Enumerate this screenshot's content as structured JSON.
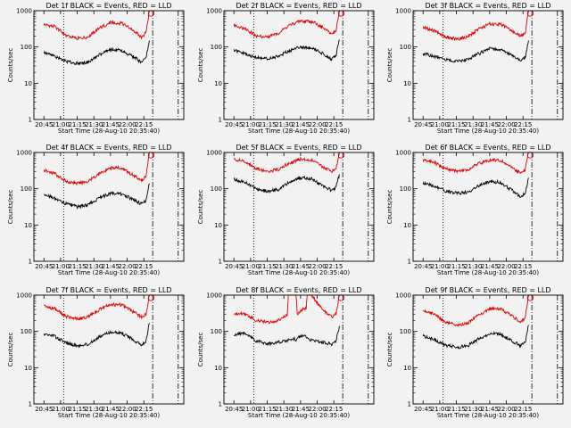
{
  "chart_data": [
    {
      "type": "line",
      "title": "Det 1f BLACK = Events, RED = LLD",
      "xlabel": "Start Time (28-Aug-10 20:35:40)",
      "ylabel": "Counts/sec",
      "yscale": "log",
      "ylim": [
        1,
        1000
      ],
      "y_ticks": [
        "1",
        "10",
        "100",
        "1000"
      ],
      "x_ticks": [
        "20:45",
        "21:00",
        "21:15",
        "21:30",
        "21:45",
        "22:00",
        "22:15"
      ],
      "x_minutes": [
        0,
        10,
        20,
        30,
        40,
        50,
        60,
        70,
        80,
        88,
        92,
        95
      ],
      "series": [
        {
          "color": "#dd0000",
          "values": [
            420,
            360,
            210,
            170,
            190,
            330,
            470,
            450,
            300,
            180,
            250,
            1000
          ]
        },
        {
          "color": "#000000",
          "values": [
            70,
            55,
            40,
            35,
            38,
            60,
            85,
            80,
            55,
            38,
            50,
            150
          ]
        }
      ],
      "vlines": [
        {
          "x_minutes": 18,
          "style": "dotted"
        },
        {
          "x_minutes": 98,
          "style": "dashdot"
        },
        {
          "x_minutes": 121,
          "style": "dashdot"
        }
      ]
    },
    {
      "type": "line",
      "title": "Det 2f BLACK = Events, RED = LLD",
      "xlabel": "Start Time (28-Aug-10 20:35:40)",
      "ylabel": "Counts/sec",
      "yscale": "log",
      "ylim": [
        1,
        1000
      ],
      "y_ticks": [
        "1",
        "10",
        "100",
        "1000"
      ],
      "x_ticks": [
        "20:45",
        "21:00",
        "21:15",
        "21:30",
        "21:45",
        "22:00",
        "22:15"
      ],
      "x_minutes": [
        0,
        10,
        20,
        30,
        40,
        50,
        60,
        70,
        80,
        88,
        92,
        95
      ],
      "series": [
        {
          "color": "#dd0000",
          "values": [
            400,
            320,
            200,
            190,
            240,
            400,
            520,
            500,
            350,
            220,
            280,
            1000
          ]
        },
        {
          "color": "#000000",
          "values": [
            80,
            65,
            50,
            48,
            55,
            80,
            100,
            95,
            65,
            45,
            60,
            160
          ]
        }
      ],
      "vlines": [
        {
          "x_minutes": 18,
          "style": "dotted"
        },
        {
          "x_minutes": 98,
          "style": "dashdot"
        },
        {
          "x_minutes": 121,
          "style": "dashdot"
        }
      ]
    },
    {
      "type": "line",
      "title": "Det 3f BLACK = Events, RED = LLD",
      "xlabel": "Start Time (28-Aug-10 20:35:40)",
      "ylabel": "Counts/sec",
      "yscale": "log",
      "ylim": [
        1,
        1000
      ],
      "y_ticks": [
        "1",
        "10",
        "100",
        "1000"
      ],
      "x_ticks": [
        "20:45",
        "21:00",
        "21:15",
        "21:30",
        "21:45",
        "22:00",
        "22:15"
      ],
      "x_minutes": [
        0,
        10,
        20,
        30,
        40,
        50,
        60,
        70,
        80,
        88,
        92,
        95
      ],
      "series": [
        {
          "color": "#dd0000",
          "values": [
            350,
            280,
            190,
            165,
            190,
            310,
            430,
            420,
            280,
            200,
            240,
            1000
          ]
        },
        {
          "color": "#000000",
          "values": [
            65,
            55,
            45,
            40,
            45,
            65,
            90,
            85,
            58,
            42,
            52,
            150
          ]
        }
      ],
      "vlines": [
        {
          "x_minutes": 18,
          "style": "dotted"
        },
        {
          "x_minutes": 98,
          "style": "dashdot"
        },
        {
          "x_minutes": 121,
          "style": "dashdot"
        }
      ]
    },
    {
      "type": "line",
      "title": "Det 4f BLACK = Events, RED = LLD",
      "xlabel": "Start Time (28-Aug-10 20:35:40)",
      "ylabel": "Counts/sec",
      "yscale": "log",
      "ylim": [
        1,
        1000
      ],
      "y_ticks": [
        "1",
        "10",
        "100",
        "1000"
      ],
      "x_ticks": [
        "20:45",
        "21:00",
        "21:15",
        "21:30",
        "21:45",
        "22:00",
        "22:15"
      ],
      "x_minutes": [
        0,
        10,
        20,
        30,
        40,
        50,
        60,
        70,
        80,
        88,
        92,
        95
      ],
      "series": [
        {
          "color": "#dd0000",
          "values": [
            320,
            260,
            160,
            140,
            160,
            260,
            380,
            370,
            240,
            170,
            210,
            1000
          ]
        },
        {
          "color": "#000000",
          "values": [
            70,
            55,
            38,
            32,
            36,
            55,
            75,
            72,
            50,
            38,
            48,
            140
          ]
        }
      ],
      "vlines": [
        {
          "x_minutes": 18,
          "style": "dotted"
        },
        {
          "x_minutes": 98,
          "style": "dashdot"
        },
        {
          "x_minutes": 121,
          "style": "dashdot"
        }
      ]
    },
    {
      "type": "line",
      "title": "Det 5f BLACK = Events, RED = LLD",
      "xlabel": "Start Time (28-Aug-10 20:35:40)",
      "ylabel": "Counts/sec",
      "yscale": "log",
      "ylim": [
        1,
        1000
      ],
      "y_ticks": [
        "1",
        "10",
        "100",
        "1000"
      ],
      "x_ticks": [
        "20:45",
        "21:00",
        "21:15",
        "21:30",
        "21:45",
        "22:00",
        "22:15"
      ],
      "x_minutes": [
        0,
        10,
        20,
        30,
        40,
        50,
        60,
        70,
        80,
        88,
        92,
        95
      ],
      "series": [
        {
          "color": "#dd0000",
          "values": [
            650,
            560,
            360,
            300,
            340,
            520,
            650,
            620,
            400,
            300,
            360,
            1000
          ]
        },
        {
          "color": "#000000",
          "values": [
            180,
            150,
            100,
            85,
            95,
            150,
            200,
            190,
            120,
            90,
            110,
            250
          ]
        }
      ],
      "vlines": [
        {
          "x_minutes": 18,
          "style": "dotted"
        },
        {
          "x_minutes": 98,
          "style": "dashdot"
        },
        {
          "x_minutes": 121,
          "style": "dashdot"
        }
      ]
    },
    {
      "type": "line",
      "title": "Det 6f BLACK = Events, RED = LLD",
      "xlabel": "Start Time (28-Aug-10 20:35:40)",
      "ylabel": "Counts/sec",
      "yscale": "log",
      "ylim": [
        1,
        1000
      ],
      "y_ticks": [
        "1",
        "10",
        "100",
        "1000"
      ],
      "x_ticks": [
        "20:45",
        "21:00",
        "21:15",
        "21:30",
        "21:45",
        "22:00",
        "22:15"
      ],
      "x_minutes": [
        0,
        10,
        20,
        30,
        40,
        50,
        60,
        70,
        80,
        88,
        92,
        95
      ],
      "series": [
        {
          "color": "#dd0000",
          "values": [
            620,
            540,
            360,
            300,
            330,
            500,
            620,
            600,
            380,
            270,
            330,
            1000
          ]
        },
        {
          "color": "#000000",
          "values": [
            140,
            120,
            85,
            75,
            80,
            120,
            160,
            150,
            90,
            60,
            75,
            200
          ]
        }
      ],
      "vlines": [
        {
          "x_minutes": 18,
          "style": "dotted"
        },
        {
          "x_minutes": 98,
          "style": "dashdot"
        },
        {
          "x_minutes": 121,
          "style": "dashdot"
        }
      ]
    },
    {
      "type": "line",
      "title": "Det 7f BLACK = Events, RED = LLD",
      "xlabel": "Start Time (28-Aug-10 20:35:40)",
      "ylabel": "Counts/sec",
      "yscale": "log",
      "ylim": [
        1,
        1000
      ],
      "y_ticks": [
        "1",
        "10",
        "100",
        "1000"
      ],
      "x_ticks": [
        "20:45",
        "21:00",
        "21:15",
        "21:30",
        "21:45",
        "22:00",
        "22:15"
      ],
      "x_minutes": [
        0,
        10,
        20,
        30,
        40,
        50,
        60,
        70,
        80,
        88,
        92,
        95
      ],
      "series": [
        {
          "color": "#dd0000",
          "values": [
            500,
            420,
            260,
            220,
            250,
            400,
            560,
            540,
            360,
            250,
            300,
            1000
          ]
        },
        {
          "color": "#000000",
          "values": [
            85,
            72,
            48,
            40,
            45,
            70,
            95,
            90,
            60,
            42,
            55,
            170
          ]
        }
      ],
      "vlines": [
        {
          "x_minutes": 18,
          "style": "dotted"
        },
        {
          "x_minutes": 98,
          "style": "dashdot"
        },
        {
          "x_minutes": 121,
          "style": "dashdot"
        }
      ]
    },
    {
      "type": "line",
      "title": "Det 8f BLACK = Events, RED = LLD",
      "xlabel": "Start Time (28-Aug-10 20:35:40)",
      "ylabel": "Counts/sec",
      "yscale": "log",
      "ylim": [
        1,
        1000
      ],
      "y_ticks": [
        "1",
        "10",
        "100",
        "1000"
      ],
      "x_ticks": [
        "20:45",
        "21:00",
        "21:15",
        "21:30",
        "21:45",
        "22:00",
        "22:15"
      ],
      "x_minutes": [
        0,
        5,
        10,
        20,
        30,
        40,
        48,
        49,
        50,
        54,
        56,
        57,
        62,
        65,
        66,
        70,
        80,
        88,
        92,
        95
      ],
      "series": [
        {
          "color": "#dd0000",
          "values": [
            300,
            320,
            300,
            200,
            180,
            200,
            280,
            1000,
            1000,
            1000,
            1000,
            300,
            400,
            420,
            1000,
            1000,
            380,
            250,
            300,
            1000
          ]
        },
        {
          "color": "#000000",
          "values": [
            80,
            90,
            85,
            55,
            45,
            50,
            55,
            55,
            60,
            62,
            58,
            65,
            75,
            70,
            72,
            55,
            50,
            45,
            55,
            140
          ]
        }
      ],
      "vlines": [
        {
          "x_minutes": 18,
          "style": "dotted"
        },
        {
          "x_minutes": 98,
          "style": "dashdot"
        },
        {
          "x_minutes": 121,
          "style": "dashdot"
        }
      ]
    },
    {
      "type": "line",
      "title": "Det 9f BLACK = Events, RED = LLD",
      "xlabel": "Start Time (28-Aug-10 20:35:40)",
      "ylabel": "Counts/sec",
      "yscale": "log",
      "ylim": [
        1,
        1000
      ],
      "y_ticks": [
        "1",
        "10",
        "100",
        "1000"
      ],
      "x_ticks": [
        "20:45",
        "21:00",
        "21:15",
        "21:30",
        "21:45",
        "22:00",
        "22:15"
      ],
      "x_minutes": [
        0,
        10,
        20,
        30,
        40,
        50,
        60,
        70,
        80,
        88,
        92,
        95
      ],
      "series": [
        {
          "color": "#dd0000",
          "values": [
            380,
            300,
            180,
            150,
            170,
            280,
            420,
            410,
            270,
            180,
            230,
            1000
          ]
        },
        {
          "color": "#000000",
          "values": [
            75,
            60,
            42,
            36,
            40,
            62,
            88,
            84,
            55,
            40,
            50,
            150
          ]
        }
      ],
      "vlines": [
        {
          "x_minutes": 18,
          "style": "dotted"
        },
        {
          "x_minutes": 98,
          "style": "dashdot"
        },
        {
          "x_minutes": 121,
          "style": "dashdot"
        }
      ]
    }
  ]
}
